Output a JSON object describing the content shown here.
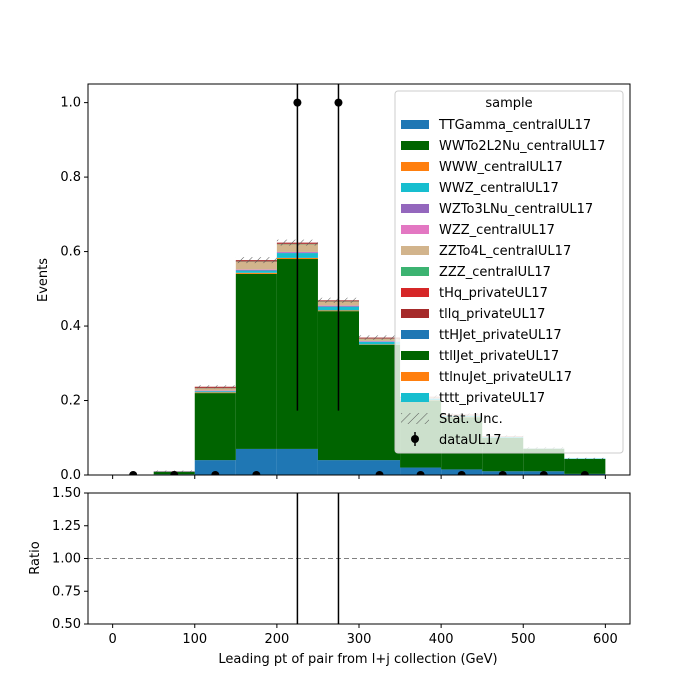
{
  "chart_data": [
    {
      "type": "bar",
      "stacked": true,
      "xlabel": "",
      "ylabel": "Events",
      "xlim": [
        -30,
        630
      ],
      "ylim": [
        0,
        1.05
      ],
      "xticks": [
        0,
        100,
        200,
        300,
        400,
        500,
        600
      ],
      "yticks": [
        "0.0",
        "0.2",
        "0.4",
        "0.6",
        "0.8",
        "1.0"
      ],
      "bin_edges": [
        0,
        50,
        100,
        150,
        200,
        250,
        300,
        350,
        400,
        450,
        500,
        550,
        600
      ],
      "series": [
        {
          "name": "TTGamma_centralUL17",
          "color": "#1f77b4",
          "values": [
            0,
            0.002,
            0.04,
            0.07,
            0.07,
            0.04,
            0.04,
            0.02,
            0.015,
            0.01,
            0.01,
            0.003
          ]
        },
        {
          "name": "WWTo2L2Nu_centralUL17",
          "color": "#006400",
          "values": [
            0,
            0.006,
            0.18,
            0.47,
            0.51,
            0.4,
            0.31,
            0.18,
            0.14,
            0.09,
            0.06,
            0.04
          ]
        },
        {
          "name": "WWW_centralUL17",
          "color": "#ff7f0e",
          "values": [
            0,
            0,
            0.002,
            0.003,
            0.003,
            0.002,
            0.001,
            0.001,
            0.001,
            0,
            0,
            0
          ]
        },
        {
          "name": "WWZ_centralUL17",
          "color": "#17becf",
          "values": [
            0,
            0.001,
            0.003,
            0.006,
            0.013,
            0.01,
            0.007,
            0.004,
            0.003,
            0.002,
            0.001,
            0.001
          ]
        },
        {
          "name": "WZTo3LNu_centralUL17",
          "color": "#9467bd",
          "values": [
            0,
            0,
            0.001,
            0.002,
            0.002,
            0.002,
            0.001,
            0.001,
            0,
            0,
            0,
            0
          ]
        },
        {
          "name": "WZZ_centralUL17",
          "color": "#e377c2",
          "values": [
            0,
            0,
            0.001,
            0.001,
            0.001,
            0.001,
            0.001,
            0,
            0,
            0,
            0,
            0
          ]
        },
        {
          "name": "ZZTo4L_centralUL17",
          "color": "#d2b48c",
          "values": [
            0,
            0,
            0.005,
            0.02,
            0.02,
            0.01,
            0.005,
            0.003,
            0.002,
            0.001,
            0.001,
            0
          ]
        },
        {
          "name": "ZZZ_centralUL17",
          "color": "#3cb371",
          "values": [
            0,
            0,
            0.001,
            0.001,
            0.001,
            0.001,
            0.001,
            0,
            0,
            0,
            0,
            0
          ]
        },
        {
          "name": "tHq_privateUL17",
          "color": "#d62728",
          "values": [
            0,
            0,
            0.001,
            0.001,
            0.001,
            0.001,
            0.001,
            0,
            0,
            0,
            0,
            0
          ]
        },
        {
          "name": "tllq_privateUL17",
          "color": "#a52a2a",
          "values": [
            0,
            0.001,
            0.003,
            0.003,
            0.003,
            0.002,
            0.002,
            0.001,
            0.001,
            0.001,
            0,
            0
          ]
        },
        {
          "name": "ttHJet_privateUL17",
          "color": "#1f77b4",
          "values": [
            0,
            0,
            0,
            0,
            0,
            0,
            0,
            0,
            0,
            0,
            0,
            0
          ]
        },
        {
          "name": "ttllJet_privateUL17",
          "color": "#006400",
          "values": [
            0,
            0,
            0,
            0,
            0,
            0,
            0,
            0,
            0,
            0,
            0,
            0
          ]
        },
        {
          "name": "ttlnuJet_privateUL17",
          "color": "#ff7f0e",
          "values": [
            0,
            0,
            0,
            0,
            0,
            0,
            0,
            0,
            0,
            0,
            0,
            0
          ]
        },
        {
          "name": "tttt_privateUL17",
          "color": "#17becf",
          "values": [
            0,
            0,
            0,
            0,
            0,
            0,
            0,
            0,
            0,
            0,
            0,
            0
          ]
        }
      ],
      "stat_unc": {
        "name": "Stat. Unc.",
        "values": [
          0,
          0.002,
          0.004,
          0.008,
          0.008,
          0.007,
          0.006,
          0.004,
          0.004,
          0.003,
          0.003,
          0.002
        ]
      },
      "data": {
        "name": "dataUL17",
        "x": [
          25,
          75,
          125,
          175,
          225,
          275,
          325,
          375,
          425,
          475,
          525,
          575
        ],
        "y": [
          0,
          0,
          0,
          0,
          1,
          1,
          0,
          0,
          0,
          0,
          0,
          0
        ],
        "yerr_low": [
          0,
          0,
          0,
          0,
          0.827,
          0.827,
          0,
          0,
          0,
          0,
          0,
          0
        ],
        "yerr_high": [
          0,
          0,
          0,
          0,
          2.3,
          2.3,
          0,
          0,
          0,
          0,
          0,
          0
        ]
      },
      "legend": {
        "title": "sample",
        "placement": "top-right"
      }
    },
    {
      "type": "scatter",
      "xlabel": "Leading pt of pair from l+j collection (GeV)",
      "ylabel": "Ratio",
      "xlim": [
        -30,
        630
      ],
      "ylim": [
        0.5,
        1.5
      ],
      "xticks": [
        "0",
        "100",
        "200",
        "300",
        "400",
        "500",
        "600"
      ],
      "yticks": [
        "0.50",
        "0.75",
        "1.00",
        "1.25",
        "1.50"
      ],
      "reference_line": 1.0,
      "errorbars": [
        {
          "x": 225,
          "low": 0,
          "high": 3
        },
        {
          "x": 275,
          "low": 0,
          "high": 3
        }
      ]
    }
  ]
}
